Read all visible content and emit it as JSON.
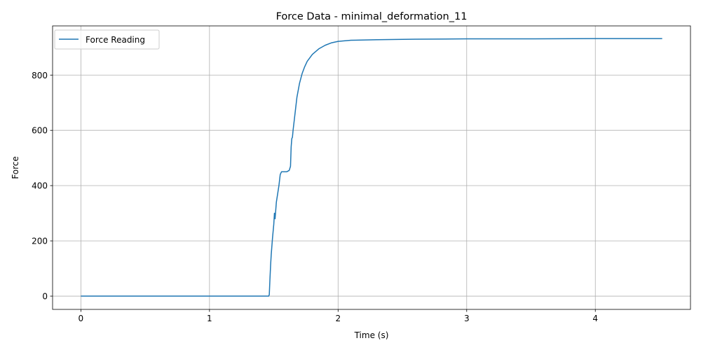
{
  "chart_data": {
    "type": "line",
    "title": "Force Data - minimal_deformation_11",
    "xlabel": "Time (s)",
    "ylabel": "Force",
    "xlim": [
      -0.22,
      4.74
    ],
    "ylim": [
      -48,
      978
    ],
    "xticks": [
      0,
      1,
      2,
      3,
      4
    ],
    "yticks": [
      0,
      200,
      400,
      600,
      800
    ],
    "grid": true,
    "legend_position": "upper-left",
    "colors": {
      "series": "#1f77b4",
      "grid": "#b0b0b0",
      "axes": "#000000"
    },
    "series": [
      {
        "name": "Force Reading",
        "x": [
          0,
          0.5,
          1.0,
          1.46,
          1.465,
          1.47,
          1.475,
          1.48,
          1.49,
          1.5,
          1.505,
          1.51,
          1.515,
          1.52,
          1.525,
          1.53,
          1.54,
          1.55,
          1.56,
          1.6,
          1.62,
          1.63,
          1.635,
          1.64,
          1.645,
          1.65,
          1.66,
          1.67,
          1.68,
          1.7,
          1.72,
          1.74,
          1.76,
          1.8,
          1.85,
          1.9,
          1.95,
          2.0,
          2.1,
          2.3,
          2.6,
          3.0,
          3.5,
          4.0,
          4.52
        ],
        "y": [
          0,
          0,
          0,
          0,
          5,
          60,
          110,
          150,
          210,
          260,
          300,
          280,
          310,
          340,
          355,
          370,
          400,
          440,
          450,
          450,
          455,
          470,
          540,
          570,
          575,
          600,
          640,
          680,
          720,
          770,
          805,
          830,
          850,
          875,
          895,
          908,
          917,
          922,
          926,
          928,
          930,
          931,
          931,
          932,
          932
        ]
      }
    ]
  }
}
